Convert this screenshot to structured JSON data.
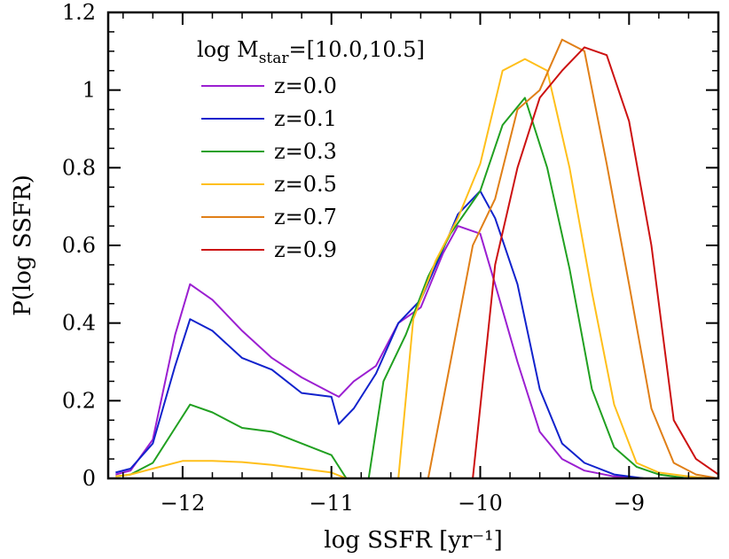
{
  "chart_data": {
    "type": "line",
    "xlabel": "log SSFR [yr⁻¹]",
    "ylabel": "P(log SSFR)",
    "xlim": [
      -12.5,
      -8.4
    ],
    "ylim": [
      0,
      1.2
    ],
    "xticks": [
      -12,
      -11,
      -10,
      -9
    ],
    "xtick_labels": [
      "−12",
      "−11",
      "−10",
      "−9"
    ],
    "yticks": [
      0,
      0.2,
      0.4,
      0.6,
      0.8,
      1,
      1.2
    ],
    "ytick_labels": [
      "0",
      "0.2",
      "0.4",
      "0.6",
      "0.8",
      "1",
      "1.2"
    ],
    "legend": {
      "title_main": "log M",
      "title_sub": "star",
      "title_rest": "=[10.0,10.5]",
      "placement": "top-center"
    },
    "series": [
      {
        "name": "z=0.0",
        "color": "#9b1fd1",
        "points": [
          [
            -12.45,
            0.01
          ],
          [
            -12.35,
            0.02
          ],
          [
            -12.2,
            0.1
          ],
          [
            -12.05,
            0.37
          ],
          [
            -11.95,
            0.5
          ],
          [
            -11.8,
            0.46
          ],
          [
            -11.6,
            0.38
          ],
          [
            -11.4,
            0.31
          ],
          [
            -11.2,
            0.26
          ],
          [
            -11.0,
            0.22
          ],
          [
            -10.95,
            0.21
          ],
          [
            -10.85,
            0.25
          ],
          [
            -10.7,
            0.29
          ],
          [
            -10.55,
            0.4
          ],
          [
            -10.4,
            0.44
          ],
          [
            -10.25,
            0.58
          ],
          [
            -10.15,
            0.65
          ],
          [
            -10.0,
            0.63
          ],
          [
            -9.9,
            0.5
          ],
          [
            -9.75,
            0.3
          ],
          [
            -9.6,
            0.12
          ],
          [
            -9.45,
            0.05
          ],
          [
            -9.3,
            0.02
          ],
          [
            -9.1,
            0.005
          ],
          [
            -8.9,
            0
          ]
        ]
      },
      {
        "name": "z=0.1",
        "color": "#1122cc",
        "points": [
          [
            -12.45,
            0.015
          ],
          [
            -12.35,
            0.025
          ],
          [
            -12.2,
            0.09
          ],
          [
            -12.05,
            0.29
          ],
          [
            -11.95,
            0.41
          ],
          [
            -11.8,
            0.38
          ],
          [
            -11.6,
            0.31
          ],
          [
            -11.4,
            0.28
          ],
          [
            -11.2,
            0.22
          ],
          [
            -11.0,
            0.21
          ],
          [
            -10.95,
            0.14
          ],
          [
            -10.85,
            0.18
          ],
          [
            -10.7,
            0.27
          ],
          [
            -10.55,
            0.4
          ],
          [
            -10.4,
            0.46
          ],
          [
            -10.25,
            0.59
          ],
          [
            -10.15,
            0.68
          ],
          [
            -10.0,
            0.74
          ],
          [
            -9.9,
            0.67
          ],
          [
            -9.75,
            0.5
          ],
          [
            -9.6,
            0.23
          ],
          [
            -9.45,
            0.09
          ],
          [
            -9.3,
            0.04
          ],
          [
            -9.1,
            0.01
          ],
          [
            -8.9,
            0
          ]
        ]
      },
      {
        "name": "z=0.3",
        "color": "#21a021",
        "points": [
          [
            -12.45,
            0.005
          ],
          [
            -12.35,
            0.01
          ],
          [
            -12.2,
            0.04
          ],
          [
            -12.05,
            0.13
          ],
          [
            -11.95,
            0.19
          ],
          [
            -11.8,
            0.17
          ],
          [
            -11.6,
            0.13
          ],
          [
            -11.4,
            0.12
          ],
          [
            -11.2,
            0.09
          ],
          [
            -11.0,
            0.06
          ],
          [
            -10.9,
            0.0
          ],
          [
            -10.75,
            0.0
          ],
          [
            -10.65,
            0.25
          ],
          [
            -10.5,
            0.37
          ],
          [
            -10.35,
            0.52
          ],
          [
            -10.2,
            0.63
          ],
          [
            -10.0,
            0.74
          ],
          [
            -9.85,
            0.91
          ],
          [
            -9.7,
            0.98
          ],
          [
            -9.55,
            0.8
          ],
          [
            -9.4,
            0.54
          ],
          [
            -9.25,
            0.23
          ],
          [
            -9.1,
            0.08
          ],
          [
            -8.95,
            0.03
          ],
          [
            -8.8,
            0.01
          ],
          [
            -8.6,
            0
          ]
        ]
      },
      {
        "name": "z=0.5",
        "color": "#ffbf1a",
        "points": [
          [
            -12.45,
            0.005
          ],
          [
            -12.35,
            0.01
          ],
          [
            -12.2,
            0.025
          ],
          [
            -12.0,
            0.045
          ],
          [
            -11.8,
            0.045
          ],
          [
            -11.6,
            0.042
          ],
          [
            -11.4,
            0.035
          ],
          [
            -11.2,
            0.025
          ],
          [
            -11.0,
            0.015
          ],
          [
            -10.9,
            0.0
          ],
          [
            -10.55,
            0.0
          ],
          [
            -10.45,
            0.41
          ],
          [
            -10.3,
            0.56
          ],
          [
            -10.15,
            0.67
          ],
          [
            -10.0,
            0.81
          ],
          [
            -9.85,
            1.05
          ],
          [
            -9.7,
            1.08
          ],
          [
            -9.55,
            1.05
          ],
          [
            -9.4,
            0.8
          ],
          [
            -9.25,
            0.48
          ],
          [
            -9.1,
            0.19
          ],
          [
            -8.95,
            0.04
          ],
          [
            -8.8,
            0.015
          ],
          [
            -8.6,
            0.005
          ],
          [
            -8.45,
            0
          ]
        ]
      },
      {
        "name": "z=0.7",
        "color": "#e07f17",
        "points": [
          [
            -10.35,
            0.0
          ],
          [
            -10.2,
            0.3
          ],
          [
            -10.05,
            0.6
          ],
          [
            -9.9,
            0.72
          ],
          [
            -9.75,
            0.95
          ],
          [
            -9.6,
            1.0
          ],
          [
            -9.45,
            1.13
          ],
          [
            -9.3,
            1.1
          ],
          [
            -9.15,
            0.81
          ],
          [
            -9.0,
            0.5
          ],
          [
            -8.85,
            0.18
          ],
          [
            -8.7,
            0.04
          ],
          [
            -8.55,
            0.01
          ],
          [
            -8.4,
            0.0
          ]
        ]
      },
      {
        "name": "z=0.9",
        "color": "#cc1111",
        "points": [
          [
            -10.05,
            0.0
          ],
          [
            -9.9,
            0.55
          ],
          [
            -9.75,
            0.8
          ],
          [
            -9.6,
            0.98
          ],
          [
            -9.45,
            1.05
          ],
          [
            -9.3,
            1.11
          ],
          [
            -9.15,
            1.09
          ],
          [
            -9.0,
            0.92
          ],
          [
            -8.85,
            0.6
          ],
          [
            -8.7,
            0.15
          ],
          [
            -8.55,
            0.05
          ],
          [
            -8.4,
            0.01
          ]
        ]
      }
    ]
  }
}
